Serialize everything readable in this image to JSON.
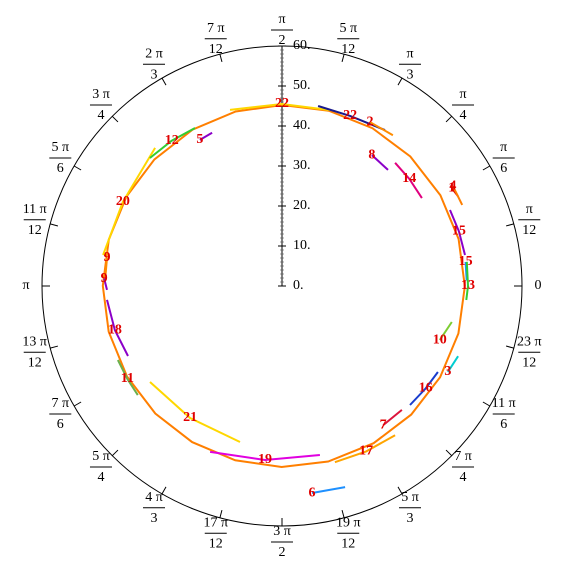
{
  "chart_data": {
    "type": "polar",
    "rlim": [
      0,
      60
    ],
    "rticks": [
      {
        "value": 0,
        "label": "0."
      },
      {
        "value": 10,
        "label": "10."
      },
      {
        "value": 20,
        "label": "20."
      },
      {
        "value": 30,
        "label": "30."
      },
      {
        "value": 40,
        "label": "40."
      },
      {
        "value": 50,
        "label": "50."
      },
      {
        "value": 60,
        "label": "60."
      }
    ],
    "theta_ticks": [
      0,
      {
        "value": 0.2618,
        "label": {
          "numerator": "π",
          "denominator": "12"
        }
      },
      {
        "value": 0.5236,
        "label": {
          "numerator": "π",
          "denominator": "6"
        }
      },
      {
        "value": 0.7854,
        "label": {
          "numerator": "π",
          "denominator": "4"
        }
      },
      {
        "value": 1.0472,
        "label": {
          "numerator": "π",
          "denominator": "3"
        }
      },
      {
        "value": 1.309,
        "label": {
          "numerator": "5 π",
          "denominator": "12"
        }
      },
      {
        "value": 1.5708,
        "label": {
          "numerator": "π",
          "denominator": "2"
        }
      },
      {
        "value": 1.8326,
        "label": {
          "numerator": "7 π",
          "denominator": "12"
        }
      },
      {
        "value": 2.0944,
        "label": {
          "numerator": "2 π",
          "denominator": "3"
        }
      },
      {
        "value": 2.3562,
        "label": {
          "numerator": "3 π",
          "denominator": "4"
        }
      },
      {
        "value": 2.618,
        "label": {
          "numerator": "5 π",
          "denominator": "6"
        }
      },
      {
        "value": 2.8798,
        "label": {
          "numerator": "11 π",
          "denominator": "12"
        }
      },
      {
        "value": 3.1416,
        "label": "π"
      },
      {
        "value": 3.4034,
        "label": {
          "numerator": "13 π",
          "denominator": "12"
        }
      },
      {
        "value": 3.6652,
        "label": {
          "numerator": "7 π",
          "denominator": "6"
        }
      },
      {
        "value": 3.927,
        "label": {
          "numerator": "5 π",
          "denominator": "4"
        }
      },
      {
        "value": 4.1888,
        "label": {
          "numerator": "4 π",
          "denominator": "3"
        }
      },
      {
        "value": 4.4506,
        "label": {
          "numerator": "17 π",
          "denominator": "12"
        }
      },
      {
        "value": 4.7124,
        "label": {
          "numerator": "3 π",
          "denominator": "2"
        }
      },
      {
        "value": 4.9742,
        "label": {
          "numerator": "19 π",
          "denominator": "12"
        }
      },
      {
        "value": 5.236,
        "label": {
          "numerator": "5 π",
          "denominator": "3"
        }
      },
      {
        "value": 5.4978,
        "label": {
          "numerator": "7 π",
          "denominator": "4"
        }
      },
      {
        "value": 5.7596,
        "label": {
          "numerator": "11 π",
          "denominator": "6"
        }
      },
      {
        "value": 6.0214,
        "label": {
          "numerator": "23 π",
          "denominator": "12"
        }
      }
    ],
    "series": [
      {
        "color": "#ff7f00",
        "theta": [
          0,
          0.26,
          0.52,
          0.79,
          1.05,
          1.31,
          1.57,
          1.83,
          2.09,
          2.36,
          2.62,
          2.88,
          3.14,
          3.4,
          3.67,
          3.93,
          4.19,
          4.45,
          4.71,
          4.97,
          5.24,
          5.5,
          5.76,
          6.02,
          6.28
        ],
        "r": [
          45.7,
          45.68,
          45.64,
          45.57,
          45.48,
          45.37,
          45.25,
          45.13,
          45.03,
          44.93,
          44.86,
          44.82,
          44.8,
          44.82,
          44.86,
          44.93,
          45.03,
          45.13,
          45.25,
          45.37,
          45.48,
          45.57,
          45.64,
          45.68,
          45.7
        ]
      },
      {
        "name": "22",
        "color": "#ffd700",
        "theta": [
          1.858,
          1.571,
          1.304
        ],
        "r": [
          45.9,
          45.5,
          45.6
        ]
      },
      {
        "name": "22",
        "color": "#1a1a8c",
        "theta": [
          1.373,
          1.19,
          0.987
        ],
        "r": [
          45.9,
          45.8,
          46.7
        ]
      },
      {
        "name": "2",
        "color": "#ff8c00",
        "theta": [
          1.078,
          0.937
        ],
        "r": [
          46.5,
          46.8
        ]
      },
      {
        "name": "8",
        "color": "#8b00c8",
        "theta": [
          0.969,
          0.831
        ],
        "r": [
          39.7,
          39.3
        ]
      },
      {
        "name": "14",
        "color": "#e0007f",
        "theta": [
          0.828,
          0.7,
          0.561
        ],
        "r": [
          41.8,
          41.6,
          41.3
        ]
      },
      {
        "name": "1",
        "color": "#e00000",
        "theta": [
          0.523,
          0.472
        ],
        "r": [
          49.0,
          49.4
        ]
      },
      {
        "name": "4",
        "color": "#ff7f00",
        "theta": [
          0.529,
          0.423
        ],
        "r": [
          49.5,
          49.4
        ]
      },
      {
        "name": "15",
        "color": "#8b00c8",
        "theta": [
          0.425,
          0.3,
          0.168
        ],
        "r": [
          46.1,
          46.3,
          46.4
        ]
      },
      {
        "name": "15",
        "color": "#1e90ff",
        "theta": [
          0.13,
          0.03
        ],
        "r": [
          46.3,
          46.2
        ]
      },
      {
        "name": "13",
        "color": "#32cd32",
        "theta": [
          0.13,
          0.0,
          -0.076
        ],
        "r": [
          46.6,
          46.5,
          46.2
        ]
      },
      {
        "name": "10",
        "color": "#7ccd32",
        "theta": [
          -0.33,
          -0.209
        ],
        "r": [
          41.7,
          43.4
        ]
      },
      {
        "name": "3",
        "color": "#00ced1",
        "theta": [
          -0.478,
          -0.379
        ],
        "r": [
          46.7,
          47.4
        ]
      },
      {
        "name": "16",
        "color": "#1a3ccd",
        "theta": [
          -0.749,
          -0.62,
          -0.504
        ],
        "r": [
          43.7,
          44.1,
          44.5
        ]
      },
      {
        "name": "7",
        "color": "#dc143c",
        "theta": [
          -0.942,
          -0.802
        ],
        "r": [
          43.0,
          43.1
        ]
      },
      {
        "name": "17",
        "color": "#ffa500",
        "theta": [
          -1.279,
          -1.1,
          -0.922
        ],
        "r": [
          46.0,
          46.4,
          46.8
        ]
      },
      {
        "name": "6",
        "color": "#1e90ff",
        "theta": [
          -1.427,
          -1.267
        ],
        "r": [
          52.3,
          52.7
        ]
      },
      {
        "name": "19",
        "color": "#e000e0",
        "theta": [
          -1.98,
          -1.668,
          -1.35
        ],
        "r": [
          45.2,
          43.7,
          43.3
        ]
      },
      {
        "name": "21",
        "color": "#ffd700",
        "theta": [
          -2.513,
          -2.179,
          -1.834
        ],
        "r": [
          40.8,
          40.2,
          40.4
        ]
      },
      {
        "name": "11",
        "color": "#6ab04c",
        "theta": [
          -2.718,
          -2.6,
          -2.494
        ],
        "r": [
          45.0,
          45.1,
          45.2
        ]
      },
      {
        "name": "18",
        "color": "#8b00c8",
        "theta": [
          3.221,
          3.4,
          3.568
        ],
        "r": [
          43.9,
          43.2,
          42.3
        ]
      },
      {
        "name": "9",
        "color": "#ff8c00",
        "theta": [
          2.983,
          3.08
        ],
        "r": [
          44.3,
          44.2
        ]
      },
      {
        "name": "9",
        "color": "#8b00c8",
        "theta": [
          3.1,
          3.164
        ],
        "r": [
          44.5,
          43.75
        ]
      },
      {
        "name": "20",
        "color": "#ffd700",
        "theta": [
          2.97,
          2.655,
          2.314
        ],
        "r": [
          45.4,
          45.0,
          46.9
        ]
      },
      {
        "name": "12",
        "color": "#32cd32",
        "theta": [
          2.372,
          2.22,
          2.074
        ],
        "r": [
          46.0,
          45.6,
          45.1
        ]
      },
      {
        "name": "5",
        "color": "#8b00c8",
        "theta": [
          2.083,
          1.999
        ],
        "r": [
          41.9,
          42.1
        ]
      }
    ]
  }
}
